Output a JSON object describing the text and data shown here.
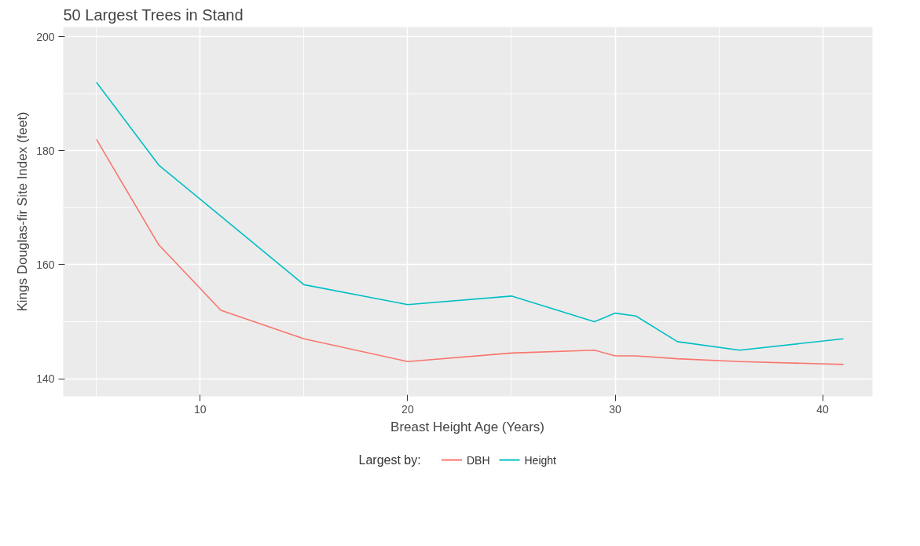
{
  "chart_data": {
    "type": "line",
    "title": "50 Largest Trees in Stand",
    "xlabel": "Breast Height Age (Years)",
    "ylabel": "Kings Douglas-fir Site Index (feet)",
    "legend_title": "Largest by:",
    "xlim": [
      3.4,
      42.4
    ],
    "ylim": [
      136.9,
      201.7
    ],
    "xticks": [
      10,
      20,
      30,
      40
    ],
    "yticks": [
      140,
      160,
      180,
      200
    ],
    "grid": true,
    "legend": "bottom",
    "series": [
      {
        "name": "DBH",
        "color": "#f8766d",
        "x": [
          5,
          8,
          11,
          15,
          20,
          25,
          29,
          30,
          31,
          33,
          36,
          41
        ],
        "values": [
          182,
          163.5,
          152,
          147,
          143,
          144.5,
          145,
          144,
          144,
          143.5,
          143,
          142.5
        ]
      },
      {
        "name": "Height",
        "color": "#00bfc4",
        "x": [
          5,
          8,
          15,
          20,
          25,
          29,
          30,
          31,
          33,
          36,
          41
        ],
        "values": [
          192,
          177.5,
          156.5,
          153,
          154.5,
          150,
          151.5,
          151,
          146.5,
          145,
          147
        ]
      }
    ]
  }
}
